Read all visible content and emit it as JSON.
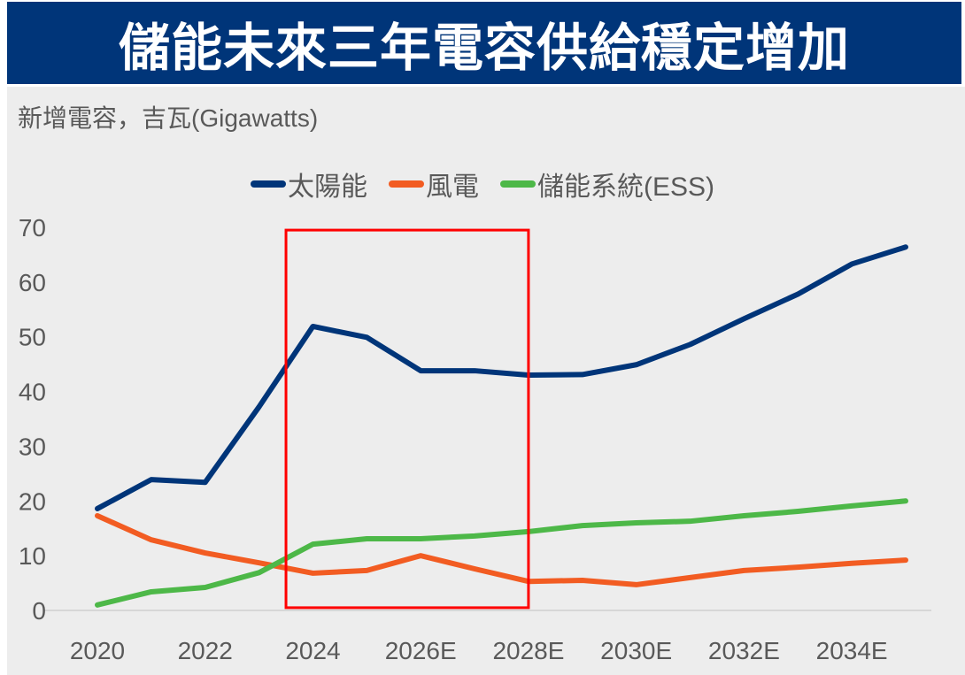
{
  "title": "儲能未來三年電容供給穩定增加",
  "chart_data": {
    "type": "line",
    "title": "儲能未來三年電容供給穩定增加",
    "ylabel": "新增電容，吉瓦(Gigawatts)",
    "xlabel": "",
    "x": [
      2020,
      2021,
      2022,
      2023,
      2024,
      2025,
      2026,
      2027,
      2028,
      2029,
      2030,
      2031,
      2032,
      2033,
      2034,
      2035
    ],
    "xticks": [
      2020,
      2022,
      2024,
      2026,
      2028,
      2030,
      2032,
      2034
    ],
    "xtick_labels": [
      "2020",
      "2022",
      "2024",
      "2026E",
      "2028E",
      "2030E",
      "2032E",
      "2034E"
    ],
    "yticks": [
      0,
      10,
      20,
      30,
      40,
      50,
      60,
      70
    ],
    "ytick_labels": [
      "0",
      "10",
      "20",
      "30",
      "40",
      "50",
      "60",
      "70"
    ],
    "ylim": [
      0,
      70
    ],
    "xlim": [
      2020,
      2035
    ],
    "grid": false,
    "legend_position": "top-center",
    "series": [
      {
        "name": "太陽能",
        "color": "#003579",
        "values": [
          18.6,
          23.9,
          23.4,
          37.2,
          51.9,
          49.9,
          43.8,
          43.8,
          43.0,
          43.1,
          44.9,
          48.6,
          53.3,
          57.8,
          63.3,
          66.4
        ]
      },
      {
        "name": "風電",
        "color": "#f25c22",
        "values": [
          17.3,
          12.9,
          10.5,
          8.7,
          6.8,
          7.3,
          10.0,
          7.6,
          5.3,
          5.5,
          4.7,
          6.0,
          7.3,
          7.9,
          8.6,
          9.2
        ]
      },
      {
        "name": "儲能系統(ESS)",
        "color": "#4db848",
        "values": [
          1.0,
          3.4,
          4.2,
          6.9,
          12.1,
          13.1,
          13.1,
          13.6,
          14.4,
          15.5,
          16.0,
          16.3,
          17.3,
          18.1,
          19.1,
          20.0
        ]
      }
    ],
    "highlight": {
      "x_range": [
        2023.5,
        2028
      ],
      "y_range": [
        0.5,
        69.5
      ],
      "color": "#ff0000"
    }
  }
}
